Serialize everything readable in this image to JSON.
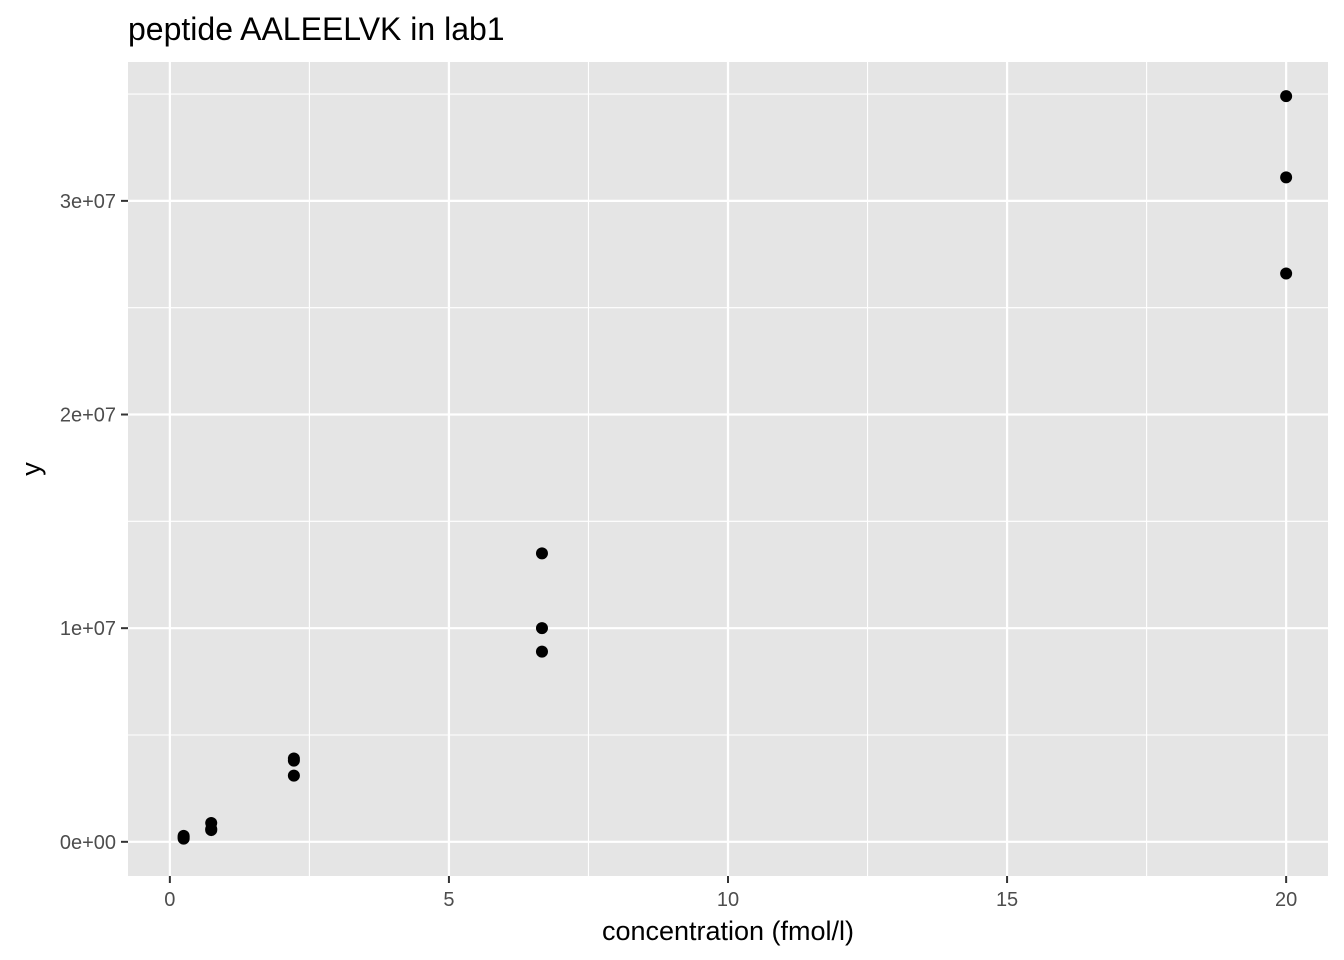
{
  "chart_data": {
    "type": "scatter",
    "title": "peptide AALEELVK in lab1",
    "xlabel": "concentration (fmol/l)",
    "ylabel": "y",
    "xlim": [
      -0.75,
      20.75
    ],
    "ylim": [
      -1600000,
      36500000
    ],
    "x_ticks": [
      0,
      5,
      10,
      15,
      20
    ],
    "x_tick_labels": [
      "0",
      "5",
      "10",
      "15",
      "20"
    ],
    "x_minor_ticks": [
      2.5,
      7.5,
      12.5,
      17.5
    ],
    "y_ticks": [
      0,
      10000000,
      20000000,
      30000000
    ],
    "y_tick_labels": [
      "0e+00",
      "1e+07",
      "2e+07",
      "3e+07"
    ],
    "y_minor_ticks": [
      5000000,
      15000000,
      25000000,
      35000000
    ],
    "grid": true,
    "background": "#e5e5e5",
    "grid_color": "#ffffff",
    "point_color": "#000000",
    "series": [
      {
        "points": [
          {
            "x": 0.247,
            "y": 150000
          },
          {
            "x": 0.247,
            "y": 220000
          },
          {
            "x": 0.247,
            "y": 280000
          },
          {
            "x": 0.741,
            "y": 550000
          },
          {
            "x": 0.741,
            "y": 600000
          },
          {
            "x": 0.741,
            "y": 880000
          },
          {
            "x": 2.222,
            "y": 3100000
          },
          {
            "x": 2.222,
            "y": 3800000
          },
          {
            "x": 2.222,
            "y": 3900000
          },
          {
            "x": 6.667,
            "y": 8900000
          },
          {
            "x": 6.667,
            "y": 10000000
          },
          {
            "x": 6.667,
            "y": 13500000
          },
          {
            "x": 20,
            "y": 26600000
          },
          {
            "x": 20,
            "y": 31100000
          },
          {
            "x": 20,
            "y": 34900000
          }
        ]
      }
    ]
  }
}
